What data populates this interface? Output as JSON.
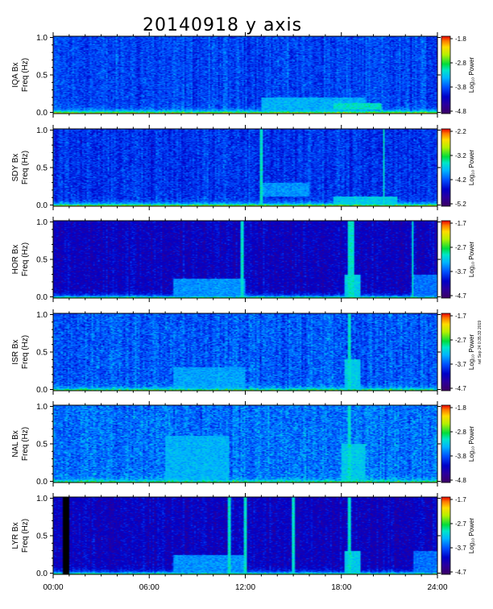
{
  "chart_data": {
    "type": "heatmap",
    "title": "20140918 y axis",
    "side_note": "rwl Sep 24 0:35:33 2019",
    "x_ticks": [
      "00:00",
      "06:00",
      "12:00",
      "18:00",
      "24:00"
    ],
    "x_range_hours": [
      0,
      24
    ],
    "y_range_hz": [
      0,
      1
    ],
    "y_ticks": [
      "0.0",
      "0.5",
      "1.0"
    ],
    "colorbar_label": "Log₁₀ Power",
    "panels": [
      {
        "station": "IQA Bx",
        "ylabel": "Freq (Hz)",
        "colorbar_ticks": [
          "-1.8",
          "-2.8",
          "-3.8",
          "-4.8"
        ],
        "color_range": [
          -4.8,
          -1.8
        ],
        "background_level": 0.32,
        "noise": 0.1,
        "low_freq_band": 0.5,
        "spikes_hours": [],
        "emissions": [
          {
            "t0": 13.0,
            "t1": 19.5,
            "f0": 0.02,
            "f1": 0.2,
            "level": 0.46
          },
          {
            "t0": 17.5,
            "t1": 20.5,
            "f0": 0.05,
            "f1": 0.13,
            "level": 0.55
          }
        ]
      },
      {
        "station": "SDY Bx",
        "ylabel": "Freq (Hz)",
        "colorbar_ticks": [
          "-2.2",
          "-3.2",
          "-4.2",
          "-5.2"
        ],
        "color_range": [
          -5.2,
          -2.2
        ],
        "background_level": 0.3,
        "noise": 0.1,
        "low_freq_band": 0.5,
        "spikes_hours": [
          13.0,
          20.7
        ],
        "emissions": [
          {
            "t0": 13.0,
            "t1": 16.0,
            "f0": 0.12,
            "f1": 0.3,
            "level": 0.42
          },
          {
            "t0": 17.5,
            "t1": 21.5,
            "f0": 0.02,
            "f1": 0.12,
            "level": 0.5
          }
        ]
      },
      {
        "station": "HOR Bx",
        "ylabel": "Freq (Hz)",
        "colorbar_ticks": [
          "-1.7",
          "-2.7",
          "-3.7",
          "-4.7"
        ],
        "color_range": [
          -4.7,
          -1.7
        ],
        "background_level": 0.2,
        "noise": 0.09,
        "low_freq_band": 0.45,
        "spikes_hours": [
          11.8,
          18.5,
          18.7,
          22.5
        ],
        "emissions": [
          {
            "t0": 7.5,
            "t1": 12.0,
            "f0": 0.02,
            "f1": 0.25,
            "level": 0.42
          },
          {
            "t0": 18.2,
            "t1": 19.2,
            "f0": 0.0,
            "f1": 0.3,
            "level": 0.5
          },
          {
            "t0": 22.5,
            "t1": 24.0,
            "f0": 0.02,
            "f1": 0.3,
            "level": 0.38
          }
        ]
      },
      {
        "station": "ISR Bx",
        "ylabel": "Freq (Hz)",
        "colorbar_ticks": [
          "-1.7",
          "-2.7",
          "-3.7",
          "-4.7"
        ],
        "color_range": [
          -4.7,
          -1.7
        ],
        "background_level": 0.35,
        "noise": 0.12,
        "low_freq_band": 0.35,
        "spikes_hours": [
          18.5
        ],
        "emissions": [
          {
            "t0": 7.5,
            "t1": 12.0,
            "f0": 0.0,
            "f1": 0.3,
            "level": 0.44
          },
          {
            "t0": 18.2,
            "t1": 19.2,
            "f0": 0.0,
            "f1": 0.4,
            "level": 0.5
          }
        ]
      },
      {
        "station": "NAL Bx",
        "ylabel": "Freq (Hz)",
        "colorbar_ticks": [
          "-1.8",
          "-2.8",
          "-3.8",
          "-4.8"
        ],
        "color_range": [
          -4.8,
          -1.8
        ],
        "background_level": 0.38,
        "noise": 0.13,
        "low_freq_band": 0.3,
        "spikes_hours": [
          18.5
        ],
        "emissions": [
          {
            "t0": 7.0,
            "t1": 11.0,
            "f0": 0.0,
            "f1": 0.6,
            "level": 0.46
          },
          {
            "t0": 18.0,
            "t1": 19.5,
            "f0": 0.0,
            "f1": 0.5,
            "level": 0.5
          }
        ]
      },
      {
        "station": "LYR Bx",
        "ylabel": "Freq (Hz)",
        "colorbar_ticks": [
          "-1.7",
          "-2.7",
          "-3.7",
          "-4.7"
        ],
        "color_range": [
          -4.7,
          -1.7
        ],
        "background_level": 0.2,
        "noise": 0.09,
        "low_freq_band": 0.45,
        "spikes_hours": [
          11.0,
          12.0,
          15.0,
          18.5
        ],
        "data_gap_hours": [
          0.6,
          0.95
        ],
        "emissions": [
          {
            "t0": 7.5,
            "t1": 12.0,
            "f0": 0.02,
            "f1": 0.25,
            "level": 0.42
          },
          {
            "t0": 18.2,
            "t1": 19.2,
            "f0": 0.0,
            "f1": 0.3,
            "level": 0.5
          },
          {
            "t0": 22.5,
            "t1": 24.0,
            "f0": 0.02,
            "f1": 0.3,
            "level": 0.38
          }
        ]
      }
    ]
  }
}
